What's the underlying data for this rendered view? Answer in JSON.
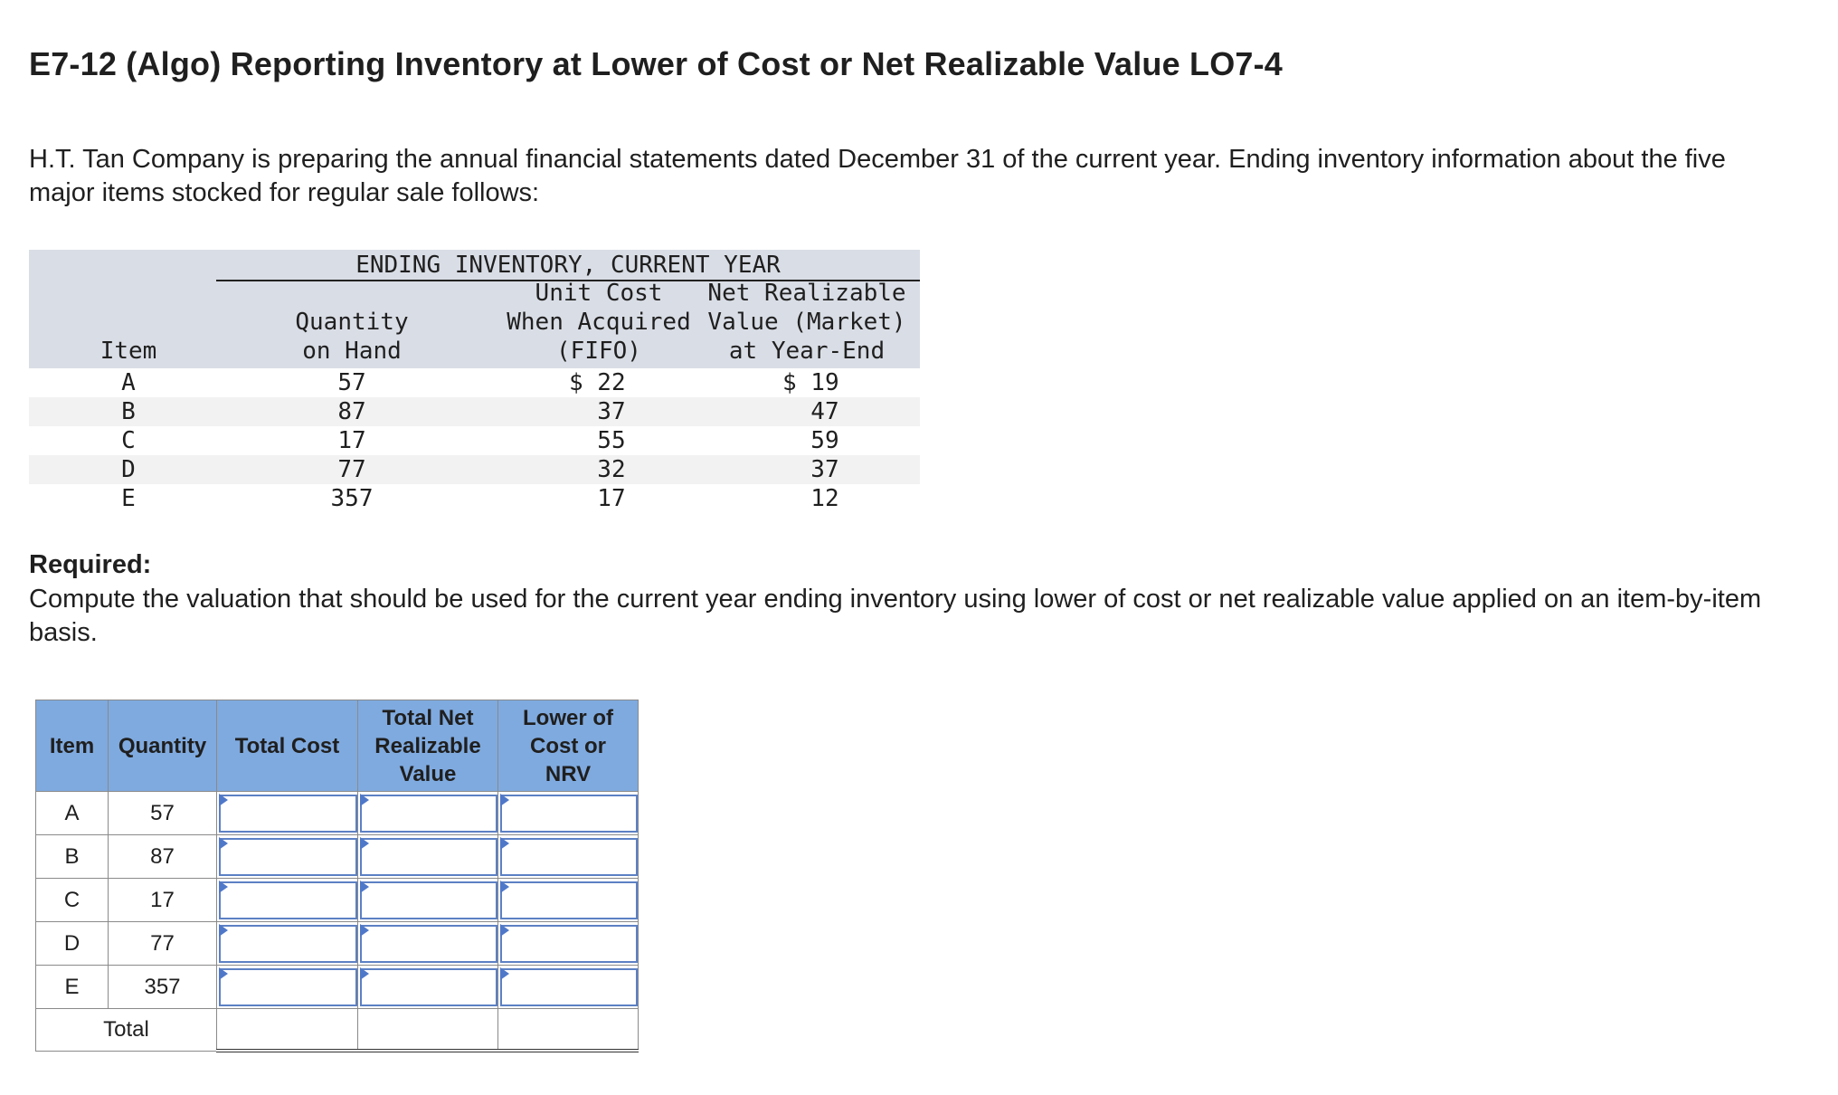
{
  "title": "E7-12 (Algo) Reporting Inventory at Lower of Cost or Net Realizable Value LO7-4",
  "intro": "H.T. Tan Company is preparing the annual financial statements dated December 31 of the current year. Ending inventory information about the five major items stocked for regular sale follows:",
  "inventory_table": {
    "group_header": "ENDING INVENTORY, CURRENT YEAR",
    "headers": {
      "item": "Item",
      "qty": "Quantity\non Hand",
      "cost": "Unit Cost\nWhen Acquired\n(FIFO)",
      "nrv": "Net Realizable\nValue (Market)\nat Year-End"
    },
    "rows": [
      {
        "item": "A",
        "qty": "57",
        "cost": "$ 22",
        "nrv": "$ 19"
      },
      {
        "item": "B",
        "qty": "87",
        "cost": "  37",
        "nrv": "  47"
      },
      {
        "item": "C",
        "qty": "17",
        "cost": "  55",
        "nrv": "  59"
      },
      {
        "item": "D",
        "qty": "77",
        "cost": "  32",
        "nrv": "  37"
      },
      {
        "item": "E",
        "qty": "357",
        "cost": "  17",
        "nrv": "  12"
      }
    ]
  },
  "required_label": "Required:",
  "required_text": "Compute the valuation that should be used for the current year ending inventory using lower of cost or net realizable value applied on an item-by-item basis.",
  "answer_table": {
    "headers": {
      "item": "Item",
      "quantity": "Quantity",
      "total_cost": "Total Cost",
      "total_nrv": "Total Net Realizable Value",
      "lcnrv": "Lower of Cost or NRV"
    },
    "rows": [
      {
        "item": "A",
        "quantity": "57"
      },
      {
        "item": "B",
        "quantity": "87"
      },
      {
        "item": "C",
        "quantity": "17"
      },
      {
        "item": "D",
        "quantity": "77"
      },
      {
        "item": "E",
        "quantity": "357"
      }
    ],
    "total_label": "Total"
  },
  "colors": {
    "header_blue": "#7faadf",
    "input_border": "#5c80c4",
    "ref_header_gray": "#d9dde5"
  }
}
